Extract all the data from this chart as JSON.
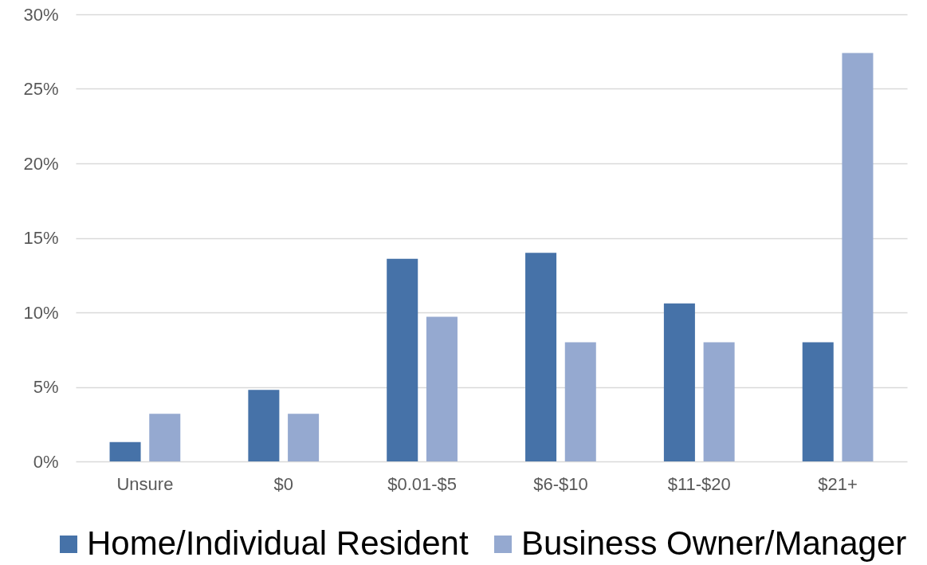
{
  "chart_data": {
    "type": "bar",
    "categories": [
      "Unsure",
      "$0",
      "$0.01-$5",
      "$6-$10",
      "$11-$20",
      "$21+"
    ],
    "series": [
      {
        "name": "Home/Individual Resident",
        "color": "#4672a8",
        "values": [
          1.3,
          4.8,
          13.6,
          14.0,
          10.6,
          8.0
        ]
      },
      {
        "name": "Business Owner/Manager",
        "color": "#95a9d0",
        "values": [
          3.2,
          3.2,
          9.7,
          8.0,
          8.0,
          27.4
        ]
      }
    ],
    "ylim": [
      0,
      30
    ],
    "yticks": [
      {
        "value": 0,
        "label": "0%"
      },
      {
        "value": 5,
        "label": "5%"
      },
      {
        "value": 10,
        "label": "10%"
      },
      {
        "value": 15,
        "label": "15%"
      },
      {
        "value": 20,
        "label": "20%"
      },
      {
        "value": 25,
        "label": "25%"
      },
      {
        "value": 30,
        "label": "30%"
      }
    ],
    "grid": "y",
    "legend": "bottom"
  }
}
